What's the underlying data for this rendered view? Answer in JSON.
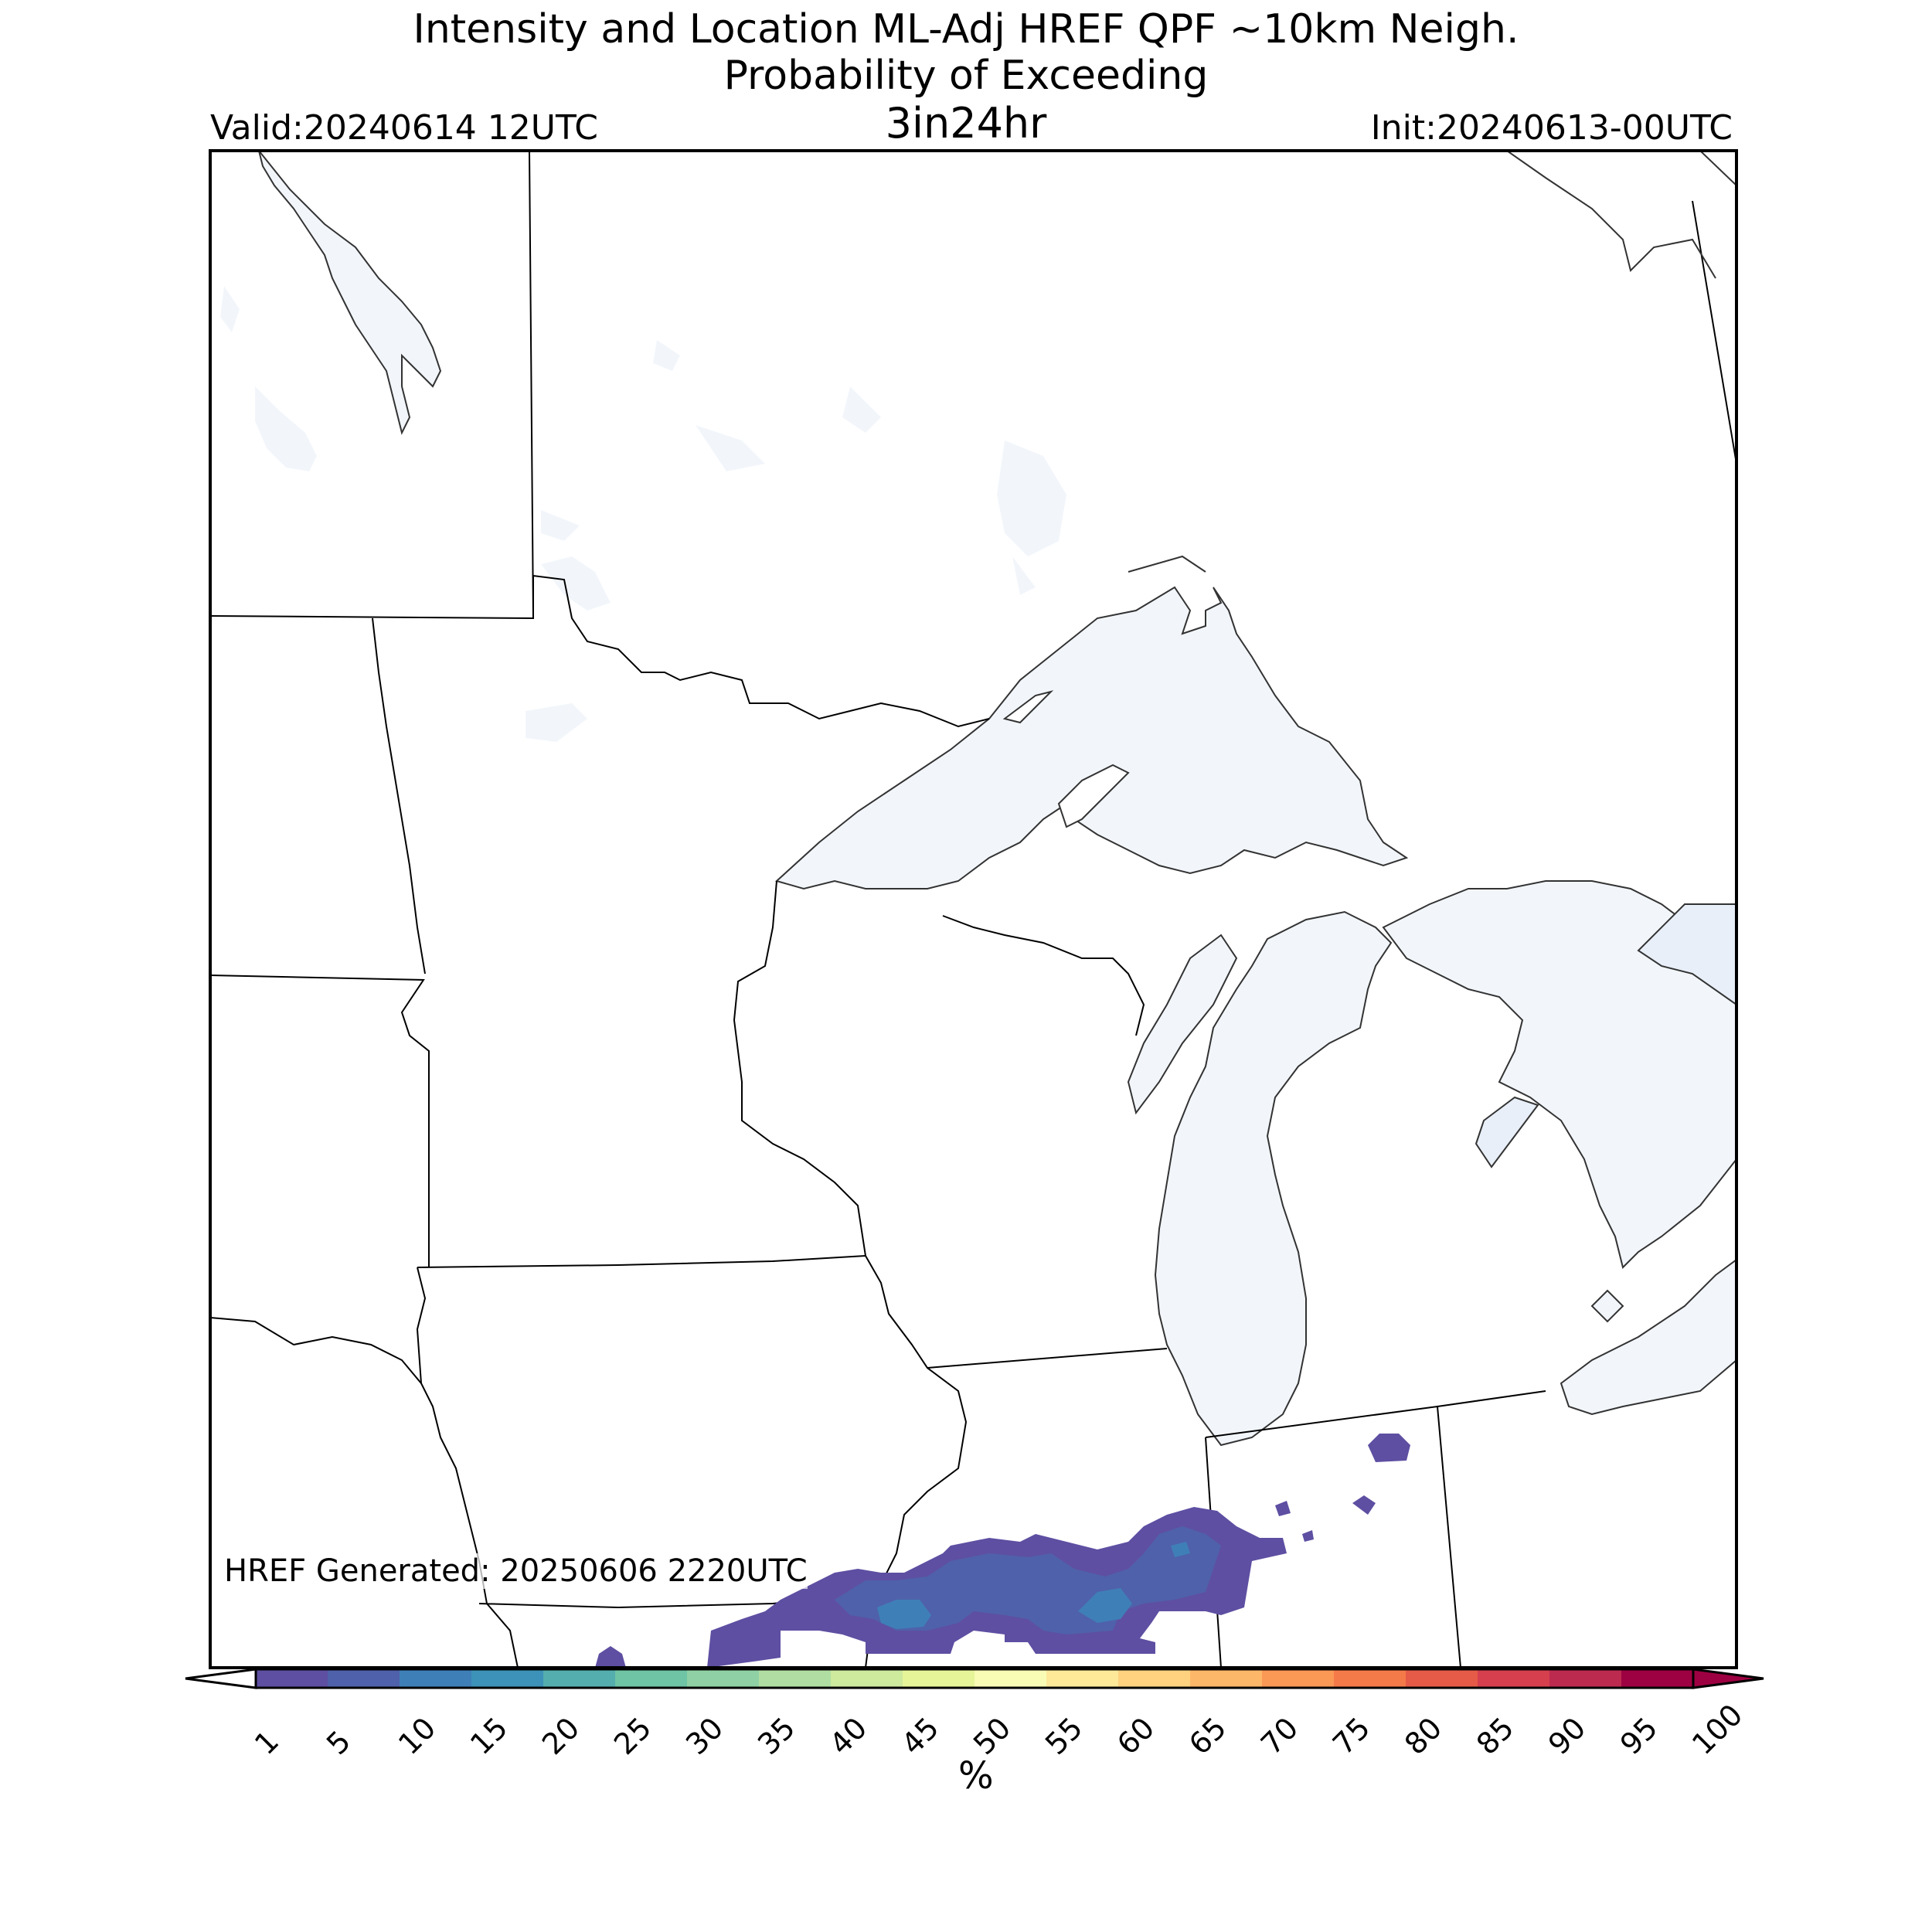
{
  "header": {
    "title_line1": "Intensity and Location ML-Adj HREF QPF ~10km Neigh.",
    "title_line2": "Probability of Exceeding",
    "title_line3": "3in24hr",
    "valid": "Valid:20240614 12UTC",
    "init": "Init:20240613-00UTC"
  },
  "map": {
    "region": "Upper Midwest / Great Lakes",
    "water_color": "#f2f6fb",
    "border_color": "#000000",
    "generated_label": "HREF Generated: 20250606 2220UTC"
  },
  "colorbar": {
    "unit": "%",
    "ticks": [
      "1",
      "5",
      "10",
      "15",
      "20",
      "25",
      "30",
      "35",
      "40",
      "45",
      "50",
      "55",
      "60",
      "65",
      "70",
      "75",
      "80",
      "85",
      "90",
      "95",
      "100"
    ],
    "colors": [
      "#5e4fa2",
      "#4f61aa",
      "#3f7fb8",
      "#3c92b8",
      "#54aead",
      "#6ec4a4",
      "#8fd1a4",
      "#b0dea2",
      "#cdea9d",
      "#e6f598",
      "#f8fcb5",
      "#fee999",
      "#fed27f",
      "#fdb768",
      "#fa9856",
      "#f57a49",
      "#e65b47",
      "#d6404e",
      "#bd2a4f",
      "#9e0142"
    ],
    "extend_low_color": "#ffffff",
    "extend_high_color": "#9e0142"
  },
  "probability_areas": [
    {
      "level": "1-5%",
      "color": "#5e4fa2"
    },
    {
      "level": "5-10%",
      "color": "#4f61aa"
    },
    {
      "level": "10-15%",
      "color": "#3f7fb8"
    }
  ]
}
